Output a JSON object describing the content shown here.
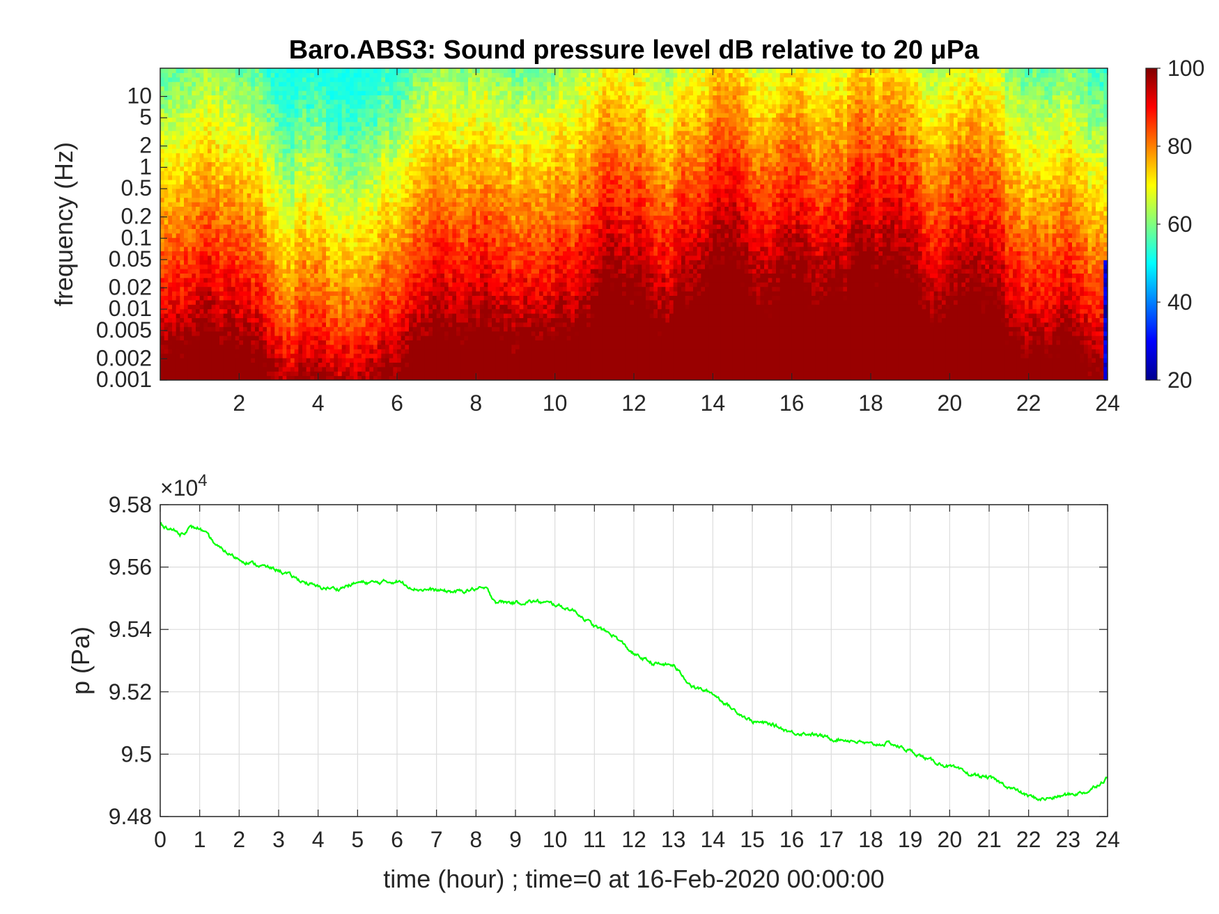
{
  "chart_data": [
    {
      "type": "heatmap",
      "title": "Baro.ABS3: Sound pressure level dB relative to 20 μPa",
      "xlabel": "",
      "ylabel": "frequency (Hz)",
      "x_range": [
        0,
        24
      ],
      "y_scale": "log",
      "y_range": [
        0.001,
        25
      ],
      "x_ticks": [
        2,
        4,
        6,
        8,
        10,
        12,
        14,
        16,
        18,
        20,
        22,
        24
      ],
      "x_tick_labels": [
        "2",
        "4",
        "6",
        "8",
        "10",
        "12",
        "14",
        "16",
        "18",
        "20",
        "22",
        "24"
      ],
      "y_ticks": [
        0.001,
        0.002,
        0.005,
        0.01,
        0.02,
        0.05,
        0.1,
        0.2,
        0.5,
        1,
        2,
        5,
        10
      ],
      "y_tick_labels": [
        "0.001",
        "0.002",
        "0.005",
        "0.01",
        "0.02",
        "0.05",
        "0.1",
        "0.2",
        "0.5",
        "1",
        "2",
        "5",
        "10"
      ],
      "colormap": "jet",
      "colorbar": {
        "range": [
          20,
          100
        ],
        "ticks": [
          20,
          40,
          60,
          80,
          100
        ],
        "tick_labels": [
          "20",
          "40",
          "60",
          "80",
          "100"
        ],
        "placement": "right"
      },
      "grid": false,
      "activity_profile": {
        "hours": [
          0,
          0.5,
          1,
          1.5,
          2,
          2.5,
          3,
          3.5,
          4,
          4.5,
          5,
          5.5,
          6,
          6.5,
          7,
          7.5,
          8,
          8.5,
          9,
          9.5,
          10,
          10.5,
          11,
          11.5,
          12,
          12.5,
          13,
          13.5,
          14,
          14.5,
          15,
          15.5,
          16,
          16.5,
          17,
          17.5,
          18,
          18.5,
          19,
          19.5,
          20,
          20.5,
          21,
          21.5,
          22,
          22.5,
          23,
          23.5,
          24
        ],
        "upper_frequency_hz_of_80dB": [
          0.1,
          0.15,
          0.2,
          0.15,
          0.1,
          0.08,
          0.02,
          0.02,
          0.02,
          0.02,
          0.02,
          0.02,
          0.05,
          0.3,
          0.5,
          0.3,
          0.5,
          0.3,
          0.1,
          0.3,
          0.5,
          0.5,
          1,
          2,
          2,
          0.5,
          0.3,
          2,
          3,
          3,
          2,
          2,
          3,
          3,
          3,
          3,
          3,
          3,
          2,
          0.5,
          1,
          2,
          1,
          0.2,
          0.1,
          0.2,
          0.3,
          0.1,
          0.02
        ]
      }
    },
    {
      "type": "line",
      "title": "",
      "xlabel": "time (hour) ; time=0 at 16-Feb-2020 00:00:00",
      "ylabel": "p (Pa)",
      "y_exponent_label": "×10",
      "y_exponent_power": "4",
      "xlim": [
        0,
        24
      ],
      "ylim": [
        9.48,
        9.58
      ],
      "x_ticks": [
        0,
        1,
        2,
        3,
        4,
        5,
        6,
        7,
        8,
        9,
        10,
        11,
        12,
        13,
        14,
        15,
        16,
        17,
        18,
        19,
        20,
        21,
        22,
        23,
        24
      ],
      "x_tick_labels": [
        "0",
        "1",
        "2",
        "3",
        "4",
        "5",
        "6",
        "7",
        "8",
        "9",
        "10",
        "11",
        "12",
        "13",
        "14",
        "15",
        "16",
        "17",
        "18",
        "19",
        "20",
        "21",
        "22",
        "23",
        "24"
      ],
      "y_ticks": [
        9.48,
        9.5,
        9.52,
        9.54,
        9.56,
        9.58
      ],
      "y_tick_labels": [
        "9.48",
        "9.5",
        "9.52",
        "9.54",
        "9.56",
        "9.58"
      ],
      "grid": true,
      "series": [
        {
          "color": "#00ff00",
          "x": [
            0,
            0.25,
            0.5,
            0.75,
            1,
            1.5,
            2,
            2.5,
            3,
            3.5,
            4,
            4.5,
            5,
            5.5,
            6,
            6.5,
            7,
            7.5,
            8,
            8.25,
            8.5,
            9,
            9.5,
            10,
            10.5,
            11,
            11.5,
            12,
            12.5,
            13,
            13.5,
            14,
            14.5,
            15,
            15.5,
            16,
            16.5,
            17,
            17.5,
            18,
            18.5,
            19,
            19.5,
            20,
            20.5,
            21,
            21.5,
            22,
            22.3,
            22.6,
            23,
            23.5,
            24
          ],
          "y": [
            9.5735,
            9.5725,
            9.5705,
            9.5725,
            9.5725,
            9.566,
            9.5625,
            9.5605,
            9.559,
            9.556,
            9.5535,
            9.553,
            9.555,
            9.555,
            9.5555,
            9.553,
            9.5525,
            9.552,
            9.553,
            9.553,
            9.549,
            9.5485,
            9.549,
            9.548,
            9.546,
            9.541,
            9.538,
            9.532,
            9.529,
            9.5285,
            9.5215,
            9.5195,
            9.5145,
            9.5105,
            9.5095,
            9.507,
            9.5065,
            9.505,
            9.5045,
            9.503,
            9.5035,
            9.501,
            9.498,
            9.496,
            9.4935,
            9.4925,
            9.4895,
            9.4865,
            9.4855,
            9.486,
            9.487,
            9.488,
            9.4925
          ]
        }
      ]
    }
  ]
}
